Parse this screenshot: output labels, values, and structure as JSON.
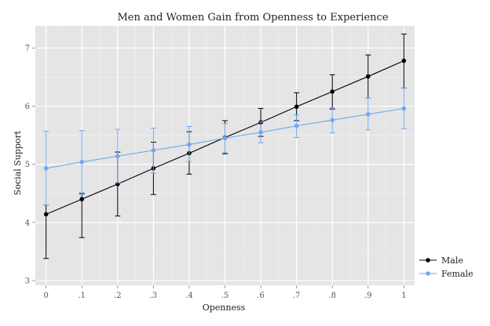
{
  "chart_data": {
    "type": "line",
    "title": "Men and Women Gain from Openness to Experience",
    "xlabel": "Openness",
    "ylabel": "Social Support",
    "x": [
      0,
      0.1,
      0.2,
      0.3,
      0.4,
      0.5,
      0.6,
      0.7,
      0.8,
      0.9,
      1.0
    ],
    "x_tick_labels": [
      "0",
      ".1",
      ".2",
      ".3",
      ".4",
      ".5",
      ".6",
      ".7",
      ".8",
      ".9",
      "1"
    ],
    "y_ticks": [
      3,
      4,
      5,
      6,
      7
    ],
    "xlim": [
      -0.03,
      1.03
    ],
    "ylim": [
      2.92,
      7.38
    ],
    "grid": true,
    "legend_position": "right",
    "series": [
      {
        "name": "Male",
        "color": "#000000",
        "values": [
          4.14,
          4.4,
          4.66,
          4.93,
          5.19,
          5.46,
          5.72,
          5.99,
          6.25,
          6.51,
          6.78
        ],
        "lower": [
          3.38,
          3.74,
          4.11,
          4.48,
          4.83,
          5.18,
          5.48,
          5.75,
          5.95,
          6.14,
          6.31
        ],
        "upper": [
          4.3,
          4.5,
          5.21,
          5.38,
          5.56,
          5.75,
          5.96,
          6.23,
          6.54,
          6.88,
          7.24
        ]
      },
      {
        "name": "Female",
        "color": "#6fa8f5",
        "values": [
          4.93,
          5.04,
          5.14,
          5.24,
          5.34,
          5.45,
          5.55,
          5.66,
          5.76,
          5.86,
          5.96
        ],
        "lower": [
          4.3,
          4.48,
          4.68,
          4.85,
          5.05,
          5.2,
          5.37,
          5.46,
          5.54,
          5.59,
          5.61
        ],
        "upper": [
          5.57,
          5.58,
          5.6,
          5.62,
          5.65,
          5.7,
          5.73,
          5.85,
          5.97,
          6.14,
          6.31
        ]
      }
    ]
  }
}
